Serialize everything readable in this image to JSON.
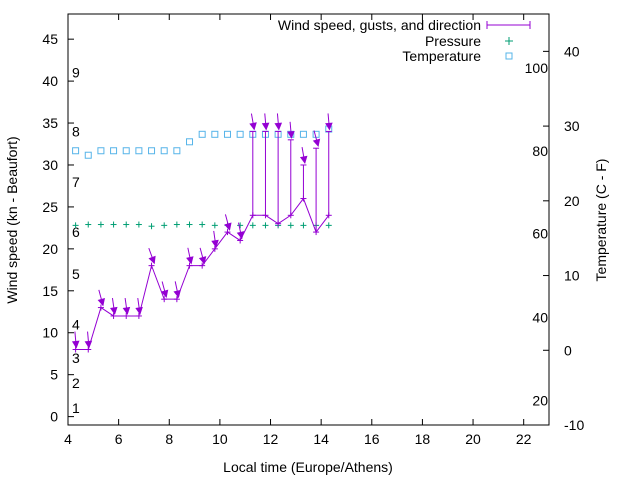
{
  "chart_data": {
    "type": "line",
    "xlabel": "Local time (Europe/Athens)",
    "ylabel": "Wind speed (kn - Beaufort)",
    "y2label": "Temperature (C - F)",
    "xlim": [
      4,
      23
    ],
    "ylim": [
      -1,
      48
    ],
    "y2lim": [
      -10,
      45
    ],
    "x_ticks": [
      4,
      6,
      8,
      10,
      12,
      14,
      16,
      18,
      20,
      22
    ],
    "y_ticks": [
      0,
      5,
      10,
      15,
      20,
      25,
      30,
      35,
      40,
      45
    ],
    "y2_ticks": [
      -10,
      0,
      10,
      20,
      30,
      40
    ],
    "beaufort_labels": [
      {
        "label": "1",
        "knots": 1
      },
      {
        "label": "2",
        "knots": 4
      },
      {
        "label": "3",
        "knots": 7
      },
      {
        "label": "4",
        "knots": 11
      },
      {
        "label": "5",
        "knots": 17
      },
      {
        "label": "6",
        "knots": 22
      },
      {
        "label": "7",
        "knots": 28
      },
      {
        "label": "8",
        "knots": 34
      },
      {
        "label": "9",
        "knots": 41
      }
    ],
    "fahrenheit_labels": [
      {
        "label": "20",
        "celsius": -6.7
      },
      {
        "label": "40",
        "celsius": 4.4
      },
      {
        "label": "60",
        "celsius": 15.6
      },
      {
        "label": "80",
        "celsius": 26.7
      },
      {
        "label": "100",
        "celsius": 37.8
      }
    ],
    "legend_position": "top-right",
    "colors": {
      "wind": "#9400d3",
      "pressure": "#009e73",
      "temperature": "#56b4e9"
    },
    "series": [
      {
        "name": "Wind speed, gusts, and direction",
        "x": [
          4.3,
          4.8,
          5.3,
          5.8,
          6.3,
          6.8,
          7.3,
          7.8,
          8.3,
          8.8,
          9.3,
          9.8,
          10.3,
          10.8,
          11.3,
          11.8,
          12.3,
          12.8,
          13.3,
          13.8,
          14.3
        ],
        "values": [
          8,
          8,
          13,
          12,
          12,
          12,
          18,
          14,
          14,
          18,
          18,
          20,
          22,
          21,
          24,
          24,
          23,
          24,
          26,
          22,
          24
        ],
        "gusts": [
          null,
          null,
          null,
          null,
          null,
          null,
          null,
          null,
          null,
          null,
          null,
          null,
          null,
          null,
          34,
          34,
          34,
          33,
          30,
          32,
          34
        ],
        "direction_deg": [
          5,
          5,
          15,
          8,
          8,
          8,
          20,
          15,
          12,
          12,
          15,
          8,
          15,
          12,
          10,
          5,
          5,
          5,
          10,
          15,
          5
        ]
      },
      {
        "name": "Pressure",
        "x": [
          4.3,
          4.8,
          5.3,
          5.8,
          6.3,
          6.8,
          7.3,
          7.8,
          8.3,
          8.8,
          9.3,
          9.8,
          10.3,
          10.8,
          11.3,
          11.8,
          12.3,
          12.8,
          13.3,
          13.8,
          14.3
        ],
        "values": [
          22.8,
          22.9,
          22.9,
          22.9,
          22.9,
          22.9,
          22.7,
          22.8,
          22.9,
          22.9,
          22.9,
          22.8,
          22.8,
          22.8,
          22.8,
          22.8,
          22.8,
          22.8,
          22.8,
          22.8,
          22.8
        ]
      },
      {
        "name": "Temperature",
        "x": [
          4.3,
          4.8,
          5.3,
          5.8,
          6.3,
          6.8,
          7.3,
          7.8,
          8.3,
          8.8,
          9.3,
          9.8,
          10.3,
          10.8,
          11.3,
          11.8,
          12.3,
          12.8,
          13.3,
          13.8,
          14.3
        ],
        "values": [
          26.7,
          26.1,
          26.7,
          26.7,
          26.7,
          26.7,
          26.7,
          26.7,
          26.7,
          27.9,
          28.9,
          28.9,
          28.9,
          28.9,
          28.9,
          28.9,
          28.9,
          28.9,
          28.9,
          28.9,
          29.6
        ]
      }
    ]
  }
}
